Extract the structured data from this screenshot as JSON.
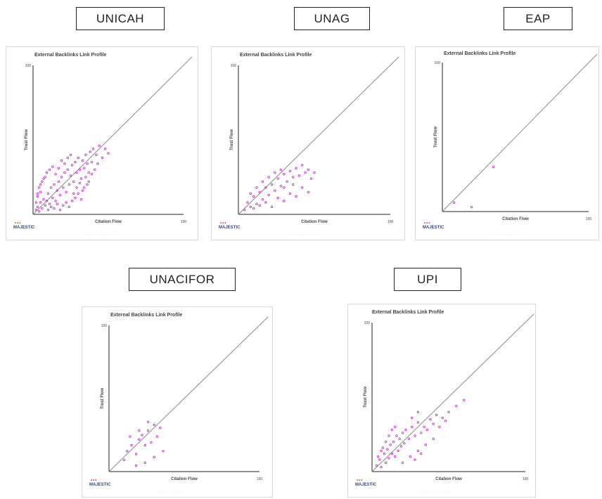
{
  "colors": {
    "point": "#c13fc6",
    "diagonal": "#8a8a8a",
    "axis": "#222222",
    "panel_border": "#d8d8d8"
  },
  "panels": [
    {
      "name": "UNICAH",
      "title": "External Backlinks Link Profile",
      "logo_text": "MAJESTIC",
      "xlabel": "Citation Flow",
      "ylabel": "Trust Flow",
      "x_max_label": "100",
      "y_max_label": "100"
    },
    {
      "name": "UNAG",
      "title": "External Backlinks Link Profile",
      "logo_text": "MAJESTIC",
      "xlabel": "Citation Flow",
      "ylabel": "Trust Flow",
      "x_max_label": "100",
      "y_max_label": "100"
    },
    {
      "name": "EAP",
      "title": "External Backlinks Link Profile",
      "logo_text": "MAJESTIC",
      "xlabel": "Citation Flow",
      "ylabel": "Trust Flow",
      "x_max_label": "100",
      "y_max_label": "100"
    },
    {
      "name": "UNACIFOR",
      "title": "External Backlinks Link Profile",
      "logo_text": "MAJESTIC",
      "xlabel": "Citation Flow",
      "ylabel": "Trust Flow",
      "x_max_label": "100",
      "y_max_label": "100"
    },
    {
      "name": "UPI",
      "title": "External Backlinks Link Profile",
      "logo_text": "MAJESTIC",
      "xlabel": "Citation Flow",
      "ylabel": "Trust Flow",
      "x_max_label": "100",
      "y_max_label": "100"
    }
  ],
  "chart_data": [
    {
      "type": "scatter",
      "name": "UNICAH",
      "title": "External Backlinks Link Profile",
      "xlabel": "Citation Flow",
      "ylabel": "Trust Flow",
      "xlim": [
        0,
        100
      ],
      "ylim": [
        0,
        100
      ],
      "diagonal": true,
      "points": [
        [
          2,
          3
        ],
        [
          3,
          5
        ],
        [
          4,
          2
        ],
        [
          5,
          8
        ],
        [
          6,
          4
        ],
        [
          7,
          10
        ],
        [
          8,
          6
        ],
        [
          3,
          12
        ],
        [
          5,
          15
        ],
        [
          9,
          9
        ],
        [
          10,
          14
        ],
        [
          11,
          7
        ],
        [
          12,
          18
        ],
        [
          13,
          11
        ],
        [
          14,
          20
        ],
        [
          15,
          9
        ],
        [
          16,
          16
        ],
        [
          17,
          22
        ],
        [
          18,
          13
        ],
        [
          19,
          25
        ],
        [
          20,
          18
        ],
        [
          21,
          28
        ],
        [
          22,
          15
        ],
        [
          23,
          30
        ],
        [
          24,
          20
        ],
        [
          25,
          26
        ],
        [
          26,
          33
        ],
        [
          27,
          22
        ],
        [
          28,
          35
        ],
        [
          29,
          28
        ],
        [
          30,
          38
        ],
        [
          31,
          30
        ],
        [
          32,
          24
        ],
        [
          33,
          36
        ],
        [
          34,
          31
        ],
        [
          35,
          40
        ],
        [
          36,
          34
        ],
        [
          37,
          28
        ],
        [
          38,
          42
        ],
        [
          39,
          35
        ],
        [
          40,
          44
        ],
        [
          4,
          18
        ],
        [
          6,
          22
        ],
        [
          8,
          25
        ],
        [
          10,
          3
        ],
        [
          12,
          5
        ],
        [
          14,
          4
        ],
        [
          16,
          7
        ],
        [
          18,
          3
        ],
        [
          20,
          6
        ],
        [
          22,
          8
        ],
        [
          24,
          5
        ],
        [
          26,
          9
        ],
        [
          28,
          11
        ],
        [
          30,
          14
        ],
        [
          32,
          10
        ],
        [
          34,
          18
        ],
        [
          36,
          20
        ],
        [
          2,
          8
        ],
        [
          3,
          14
        ],
        [
          5,
          20
        ],
        [
          7,
          24
        ],
        [
          9,
          28
        ],
        [
          11,
          30
        ],
        [
          13,
          32
        ],
        [
          15,
          27
        ],
        [
          17,
          31
        ],
        [
          19,
          36
        ],
        [
          21,
          34
        ],
        [
          23,
          38
        ],
        [
          25,
          40
        ],
        [
          42,
          40
        ],
        [
          44,
          46
        ],
        [
          46,
          38
        ],
        [
          48,
          44
        ],
        [
          50,
          41
        ],
        [
          27,
          14
        ],
        [
          29,
          18
        ],
        [
          31,
          21
        ],
        [
          33,
          16
        ],
        [
          35,
          25
        ],
        [
          37,
          22
        ],
        [
          39,
          27
        ],
        [
          41,
          30
        ],
        [
          43,
          34
        ]
      ]
    },
    {
      "type": "scatter",
      "name": "UNAG",
      "title": "External Backlinks Link Profile",
      "xlabel": "Citation Flow",
      "ylabel": "Trust Flow",
      "xlim": [
        0,
        100
      ],
      "ylim": [
        0,
        100
      ],
      "diagonal": true,
      "points": [
        [
          4,
          3
        ],
        [
          6,
          8
        ],
        [
          8,
          5
        ],
        [
          10,
          12
        ],
        [
          12,
          7
        ],
        [
          14,
          15
        ],
        [
          16,
          10
        ],
        [
          18,
          18
        ],
        [
          20,
          13
        ],
        [
          22,
          20
        ],
        [
          24,
          16
        ],
        [
          26,
          24
        ],
        [
          28,
          19
        ],
        [
          30,
          27
        ],
        [
          32,
          22
        ],
        [
          34,
          29
        ],
        [
          36,
          25
        ],
        [
          38,
          31
        ],
        [
          40,
          26
        ],
        [
          42,
          33
        ],
        [
          44,
          28
        ],
        [
          46,
          30
        ],
        [
          48,
          24
        ],
        [
          50,
          28
        ],
        [
          10,
          4
        ],
        [
          14,
          6
        ],
        [
          18,
          8
        ],
        [
          22,
          5
        ],
        [
          26,
          11
        ],
        [
          30,
          9
        ],
        [
          34,
          14
        ],
        [
          38,
          12
        ],
        [
          42,
          18
        ],
        [
          46,
          15
        ],
        [
          20,
          25
        ],
        [
          24,
          28
        ],
        [
          28,
          30
        ],
        [
          16,
          22
        ],
        [
          12,
          18
        ],
        [
          8,
          14
        ],
        [
          30,
          18
        ],
        [
          36,
          20
        ]
      ]
    },
    {
      "type": "scatter",
      "name": "EAP",
      "title": "External Backlinks Link Profile",
      "xlabel": "Citation Flow",
      "ylabel": "Trust Flow",
      "xlim": [
        0,
        100
      ],
      "ylim": [
        0,
        100
      ],
      "diagonal": true,
      "points": [
        [
          8,
          6
        ],
        [
          20,
          3
        ],
        [
          35,
          30
        ]
      ]
    },
    {
      "type": "scatter",
      "name": "UNACIFOR",
      "title": "External Backlinks Link Profile",
      "xlabel": "Citation Flow",
      "ylabel": "Trust Flow",
      "xlim": [
        0,
        100
      ],
      "ylim": [
        0,
        100
      ],
      "diagonal": true,
      "points": [
        [
          10,
          8
        ],
        [
          12,
          14
        ],
        [
          15,
          18
        ],
        [
          18,
          12
        ],
        [
          20,
          22
        ],
        [
          22,
          25
        ],
        [
          24,
          18
        ],
        [
          26,
          28
        ],
        [
          28,
          20
        ],
        [
          30,
          32
        ],
        [
          32,
          24
        ],
        [
          34,
          30
        ],
        [
          36,
          14
        ],
        [
          24,
          6
        ],
        [
          18,
          4
        ],
        [
          30,
          10
        ],
        [
          14,
          24
        ],
        [
          20,
          28
        ],
        [
          26,
          34
        ]
      ]
    },
    {
      "type": "scatter",
      "name": "UPI",
      "title": "External Backlinks Link Profile",
      "xlabel": "Citation Flow",
      "ylabel": "Trust Flow",
      "xlim": [
        0,
        100
      ],
      "ylim": [
        0,
        100
      ],
      "diagonal": true,
      "points": [
        [
          3,
          4
        ],
        [
          5,
          8
        ],
        [
          6,
          3
        ],
        [
          8,
          12
        ],
        [
          9,
          6
        ],
        [
          10,
          15
        ],
        [
          11,
          9
        ],
        [
          12,
          18
        ],
        [
          13,
          12
        ],
        [
          14,
          20
        ],
        [
          15,
          10
        ],
        [
          16,
          24
        ],
        [
          17,
          14
        ],
        [
          18,
          22
        ],
        [
          19,
          17
        ],
        [
          20,
          26
        ],
        [
          21,
          19
        ],
        [
          22,
          28
        ],
        [
          24,
          22
        ],
        [
          26,
          30
        ],
        [
          28,
          24
        ],
        [
          30,
          33
        ],
        [
          32,
          26
        ],
        [
          34,
          30
        ],
        [
          36,
          28
        ],
        [
          38,
          35
        ],
        [
          40,
          32
        ],
        [
          42,
          38
        ],
        [
          44,
          30
        ],
        [
          46,
          36
        ],
        [
          48,
          34
        ],
        [
          50,
          40
        ],
        [
          7,
          16
        ],
        [
          9,
          20
        ],
        [
          11,
          24
        ],
        [
          13,
          28
        ],
        [
          15,
          30
        ],
        [
          20,
          6
        ],
        [
          25,
          10
        ],
        [
          30,
          14
        ],
        [
          35,
          18
        ],
        [
          40,
          22
        ],
        [
          4,
          10
        ],
        [
          6,
          14
        ],
        [
          28,
          8
        ],
        [
          32,
          12
        ],
        [
          55,
          44
        ],
        [
          60,
          48
        ],
        [
          26,
          36
        ],
        [
          30,
          40
        ]
      ]
    }
  ]
}
